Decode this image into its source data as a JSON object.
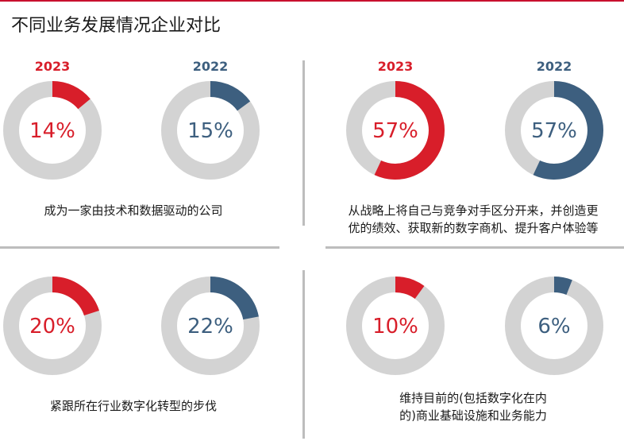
{
  "title": "不同业务发展情况企业对比",
  "colors": {
    "y2023": "#d81e2a",
    "y2022": "#3d5f7f",
    "track": "#d3d3d3",
    "rule": "#c8102e"
  },
  "chart_data": [
    {
      "type": "pie",
      "caption_lines": [
        "成为一家由技术和数据驱动的公司"
      ],
      "series": [
        {
          "name": "2023",
          "value": 14,
          "label": "14%"
        },
        {
          "name": "2022",
          "value": 15,
          "label": "15%"
        }
      ]
    },
    {
      "type": "pie",
      "caption_lines": [
        "从战略上将自己与竞争对手区分开来，并创造更",
        "优的绩效、获取新的数字商机、提升客户体验等"
      ],
      "series": [
        {
          "name": "2023",
          "value": 57,
          "label": "57%"
        },
        {
          "name": "2022",
          "value": 57,
          "label": "57%"
        }
      ]
    },
    {
      "type": "pie",
      "caption_lines": [
        "紧跟所在行业数字化转型的步伐"
      ],
      "series": [
        {
          "name": "2023",
          "value": 20,
          "label": "20%"
        },
        {
          "name": "2022",
          "value": 22,
          "label": "22%"
        }
      ]
    },
    {
      "type": "pie",
      "caption_lines": [
        "维持目前的(包括数字化在内",
        "的)商业基础设施和业务能力"
      ],
      "series": [
        {
          "name": "2023",
          "value": 10,
          "label": "10%"
        },
        {
          "name": "2022",
          "value": 6,
          "label": "6%"
        }
      ]
    }
  ]
}
